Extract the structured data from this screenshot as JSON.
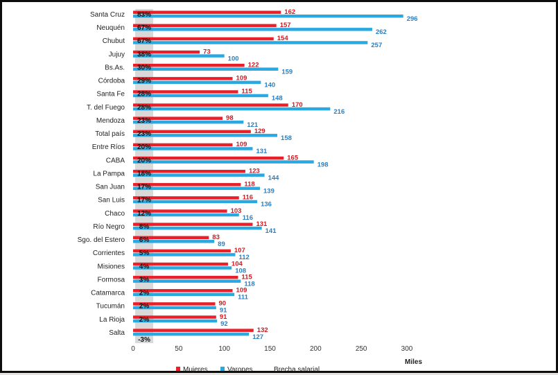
{
  "chart_data": {
    "type": "bar",
    "orientation": "horizontal",
    "categories": [
      "Santa Cruz",
      "Neuquén",
      "Chubut",
      "Jujuy",
      "Bs.As.",
      "Córdoba",
      "Santa Fe",
      "T. del Fuego",
      "Mendoza",
      "Total país",
      "Entre Ríos",
      "CABA",
      "La Pampa",
      "San Juan",
      "San Luis",
      "Chaco",
      "Río Negro",
      "Sgo. del Estero",
      "Corrientes",
      "Misiones",
      "Formosa",
      "Catamarca",
      "Tucumán",
      "La Rioja",
      "Salta"
    ],
    "series": [
      {
        "name": "Mujeres",
        "color": "#e8202a",
        "values": [
          162,
          157,
          154,
          73,
          122,
          109,
          115,
          170,
          98,
          129,
          109,
          165,
          123,
          118,
          116,
          103,
          131,
          83,
          107,
          104,
          115,
          109,
          90,
          91,
          132
        ]
      },
      {
        "name": "Varones",
        "color": "#2aa8e0",
        "values": [
          296,
          262,
          257,
          100,
          159,
          140,
          148,
          216,
          121,
          158,
          131,
          198,
          144,
          139,
          136,
          116,
          141,
          89,
          112,
          108,
          118,
          111,
          91,
          92,
          127
        ]
      }
    ],
    "brecha": {
      "name": "Brecha salarial",
      "labels": [
        "83%",
        "67%",
        "67%",
        "38%",
        "30%",
        "29%",
        "28%",
        "28%",
        "23%",
        "23%",
        "20%",
        "20%",
        "18%",
        "17%",
        "17%",
        "12%",
        "8%",
        "6%",
        "5%",
        "4%",
        "3%",
        "2%",
        "2%",
        "2%",
        "-3%"
      ],
      "color": "#d9d9d9"
    },
    "xlim": [
      0,
      300
    ],
    "xticks": [
      "0",
      "50",
      "100",
      "150",
      "200",
      "250",
      "300"
    ],
    "xunit": "Miles",
    "legend_position": "bottom"
  }
}
